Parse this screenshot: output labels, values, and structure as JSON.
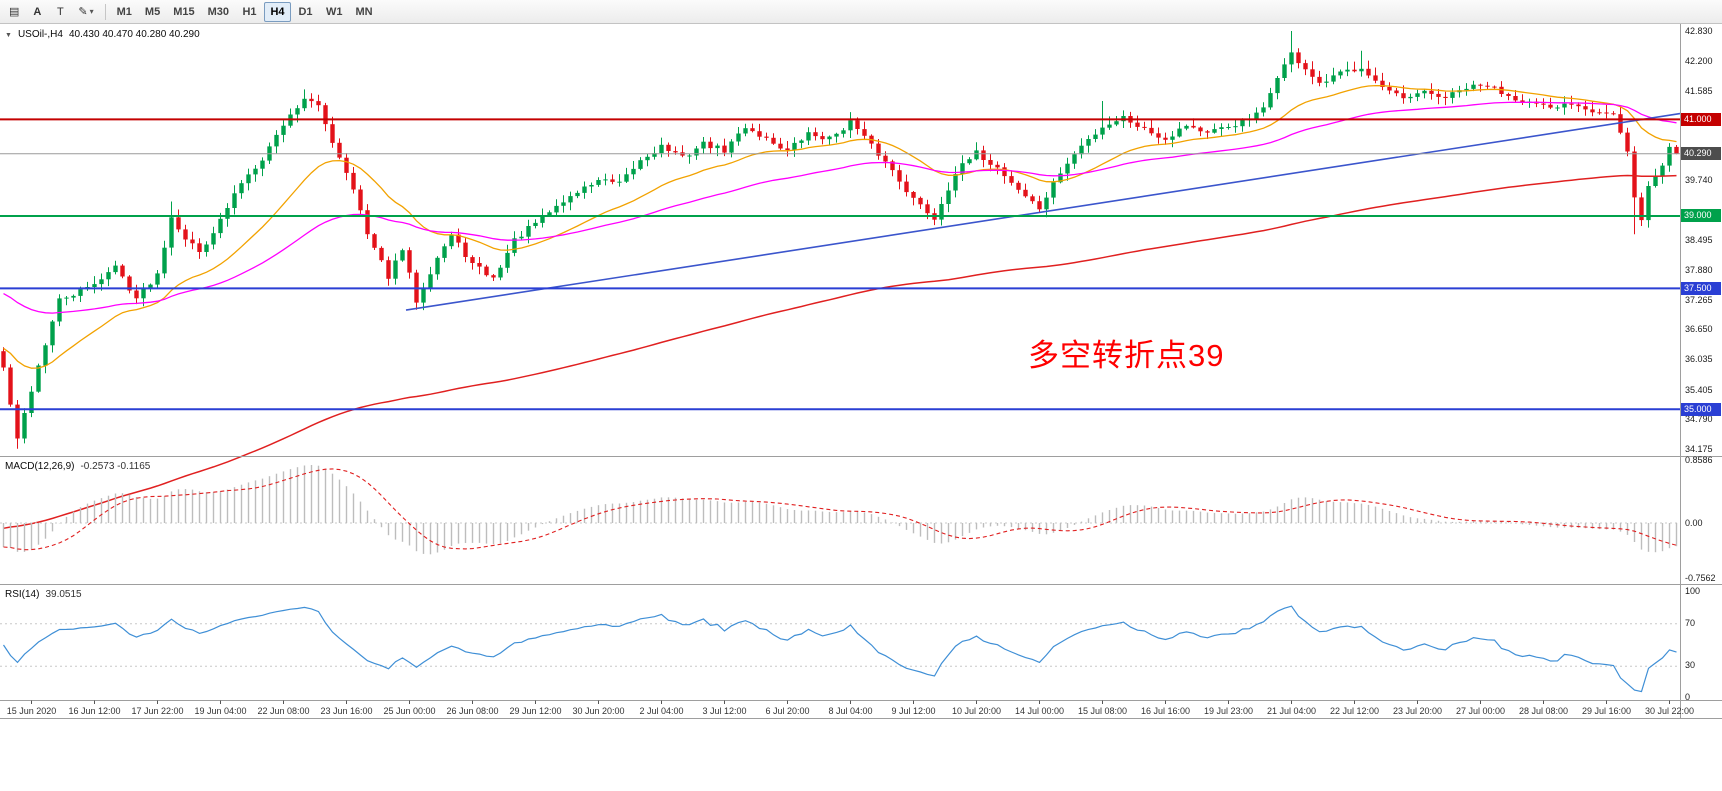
{
  "toolbar": {
    "tool_buttons": [
      {
        "id": "chart-properties",
        "glyph": "▤"
      },
      {
        "id": "arrow-tool",
        "glyph": "A"
      },
      {
        "id": "text-tool",
        "glyph": "T"
      },
      {
        "id": "palette",
        "glyph": "✎",
        "caret": "▾"
      }
    ],
    "timeframes": [
      "M1",
      "M5",
      "M15",
      "M30",
      "H1",
      "H4",
      "D1",
      "W1",
      "MN"
    ],
    "active_timeframe": "H4"
  },
  "price_panel": {
    "collapse_icon": "▼",
    "symbol_title": "USOil-,H4",
    "ohlc": "40.430 40.470 40.280 40.290",
    "annotation": {
      "text": "多空转折点39",
      "color": "#ff0000"
    },
    "scale_ticks": [
      {
        "label": "42.830",
        "price": 42.83
      },
      {
        "label": "42.200",
        "price": 42.2
      },
      {
        "label": "41.585",
        "price": 41.585
      },
      {
        "label": "39.740",
        "price": 39.74
      },
      {
        "label": "38.495",
        "price": 38.495
      },
      {
        "label": "37.880",
        "price": 37.88
      },
      {
        "label": "37.265",
        "price": 37.265
      },
      {
        "label": "36.650",
        "price": 36.65
      },
      {
        "label": "36.035",
        "price": 36.035
      },
      {
        "label": "35.405",
        "price": 35.405
      },
      {
        "label": "34.790",
        "price": 34.79
      },
      {
        "label": "34.175",
        "price": 34.175
      }
    ],
    "scale_badges": [
      {
        "label": "41.000",
        "price": 41.0,
        "bg": "#c40000"
      },
      {
        "label": "40.290",
        "price": 40.29,
        "bg": "#4d4d4d"
      },
      {
        "label": "39.000",
        "price": 39.0,
        "bg": "#00a14b"
      },
      {
        "label": "37.500",
        "price": 37.5,
        "bg": "#2a3fd4"
      },
      {
        "label": "35.000",
        "price": 35.0,
        "bg": "#2a3fd4"
      }
    ],
    "hlines": [
      {
        "price": 41.0,
        "color": "#c40000",
        "width": 2
      },
      {
        "price": 40.29,
        "color": "#9a9a9a",
        "width": 1
      },
      {
        "price": 39.0,
        "color": "#00a14b",
        "width": 2
      },
      {
        "price": 37.5,
        "color": "#2a3fd4",
        "width": 2
      },
      {
        "price": 35.0,
        "color": "#2a3fd4",
        "width": 2
      }
    ],
    "trendlines": [
      {
        "bar1": 58,
        "price1": 37.05,
        "bar2": 240,
        "price2": 41.12,
        "color": "#3b55cc",
        "width": 1.6
      }
    ]
  },
  "chart_data": {
    "type": "candlestick",
    "symbol": "USOil",
    "timeframe": "H4",
    "bars": 240,
    "y_range": [
      34.03,
      42.975
    ],
    "up_color": "#00a14b",
    "down_color": "#e3121a",
    "noise_seed": 42,
    "first_open": 36.2,
    "close_anchors": [
      [
        0,
        35.85
      ],
      [
        1,
        35.1
      ],
      [
        2,
        34.35
      ],
      [
        3,
        34.9
      ],
      [
        5,
        35.9
      ],
      [
        8,
        37.25
      ],
      [
        12,
        37.5
      ],
      [
        16,
        37.95
      ],
      [
        19,
        37.3
      ],
      [
        22,
        37.8
      ],
      [
        24,
        39.0
      ],
      [
        26,
        38.55
      ],
      [
        28,
        38.25
      ],
      [
        31,
        38.9
      ],
      [
        34,
        39.7
      ],
      [
        37,
        40.2
      ],
      [
        40,
        40.9
      ],
      [
        43,
        41.45
      ],
      [
        45,
        41.25
      ],
      [
        47,
        40.55
      ],
      [
        50,
        39.6
      ],
      [
        52,
        38.6
      ],
      [
        55,
        37.75
      ],
      [
        57,
        38.3
      ],
      [
        59,
        37.25
      ],
      [
        62,
        38.15
      ],
      [
        64,
        38.6
      ],
      [
        67,
        38.0
      ],
      [
        70,
        37.7
      ],
      [
        73,
        38.5
      ],
      [
        76,
        38.85
      ],
      [
        79,
        39.2
      ],
      [
        82,
        39.5
      ],
      [
        85,
        39.75
      ],
      [
        88,
        39.65
      ],
      [
        91,
        40.15
      ],
      [
        94,
        40.45
      ],
      [
        97,
        40.2
      ],
      [
        100,
        40.5
      ],
      [
        103,
        40.35
      ],
      [
        106,
        40.85
      ],
      [
        109,
        40.6
      ],
      [
        112,
        40.35
      ],
      [
        115,
        40.7
      ],
      [
        118,
        40.6
      ],
      [
        121,
        40.95
      ],
      [
        124,
        40.45
      ],
      [
        127,
        39.95
      ],
      [
        130,
        39.35
      ],
      [
        133,
        38.95
      ],
      [
        136,
        39.9
      ],
      [
        139,
        40.3
      ],
      [
        142,
        40.0
      ],
      [
        145,
        39.55
      ],
      [
        148,
        39.15
      ],
      [
        151,
        39.9
      ],
      [
        154,
        40.45
      ],
      [
        157,
        40.85
      ],
      [
        160,
        41.05
      ],
      [
        163,
        40.8
      ],
      [
        166,
        40.6
      ],
      [
        169,
        40.9
      ],
      [
        172,
        40.7
      ],
      [
        175,
        40.85
      ],
      [
        178,
        41.0
      ],
      [
        180,
        41.2
      ],
      [
        182,
        41.9
      ],
      [
        184,
        42.35
      ],
      [
        186,
        42.05
      ],
      [
        188,
        41.7
      ],
      [
        191,
        41.95
      ],
      [
        194,
        42.1
      ],
      [
        197,
        41.65
      ],
      [
        200,
        41.4
      ],
      [
        203,
        41.55
      ],
      [
        206,
        41.45
      ],
      [
        209,
        41.65
      ],
      [
        212,
        41.7
      ],
      [
        215,
        41.5
      ],
      [
        218,
        41.35
      ],
      [
        221,
        41.2
      ],
      [
        224,
        41.35
      ],
      [
        227,
        41.2
      ],
      [
        230,
        41.1
      ],
      [
        232,
        40.3
      ],
      [
        233,
        39.35
      ],
      [
        234,
        38.95
      ],
      [
        235,
        39.6
      ],
      [
        237,
        40.05
      ],
      [
        238,
        40.43
      ],
      [
        239,
        40.29
      ]
    ],
    "wick_overrides": {
      "2": {
        "low": 34.18
      },
      "24": {
        "high": 39.3
      },
      "43": {
        "high": 41.62
      },
      "121": {
        "high": 41.15
      },
      "157": {
        "high": 41.38
      },
      "184": {
        "high": 42.83
      },
      "194": {
        "high": 42.42
      },
      "233": {
        "low": 38.62
      }
    },
    "last_bar": {
      "open": 40.43,
      "high": 40.47,
      "low": 40.28,
      "close": 40.29
    },
    "moving_averages": [
      {
        "name": "fast",
        "period": 21,
        "seed": 36.3,
        "color": "#f2a200",
        "width": 1.3
      },
      {
        "name": "medium",
        "period": 55,
        "seed": 37.45,
        "color": "#ff00ff",
        "width": 1.3
      },
      {
        "name": "slow",
        "period": 200,
        "seed": 32.5,
        "color": "#e02020",
        "width": 1.5
      }
    ],
    "time_labels": [
      "15 Jun 2020",
      "16 Jun 12:00",
      "17 Jun 22:00",
      "19 Jun 04:00",
      "22 Jun 08:00",
      "23 Jun 16:00",
      "25 Jun 00:00",
      "26 Jun 08:00",
      "29 Jun 12:00",
      "30 Jun 20:00",
      "2 Jul 04:00",
      "3 Jul 12:00",
      "6 Jul 20:00",
      "8 Jul 04:00",
      "9 Jul 12:00",
      "10 Jul 20:00",
      "14 Jul 00:00",
      "15 Jul 08:00",
      "16 Jul 16:00",
      "19 Jul 23:00",
      "21 Jul 04:00",
      "22 Jul 12:00",
      "23 Jul 20:00",
      "27 Jul 00:00",
      "28 Jul 08:00",
      "29 Jul 16:00",
      "30 Jul 22:00"
    ],
    "label_every_bars": 9,
    "label_offset_bars": 4
  },
  "macd_panel": {
    "title": "MACD(12,26,9)",
    "values": "-0.2573 -0.1165",
    "fast": 12,
    "slow": 26,
    "signal": 9,
    "hist_color": "#bdbdbd",
    "signal_color": "#e02020",
    "scale_labels": [
      {
        "label": "0.8586",
        "value": 0.8586
      },
      {
        "label": "0.00",
        "value": 0
      },
      {
        "label": "-0.7562",
        "value": -0.7562
      }
    ]
  },
  "rsi_panel": {
    "title": "RSI(14)",
    "value": "39.0515",
    "period": 14,
    "line_color": "#3f8fd6",
    "levels": [
      70,
      30
    ],
    "scale_labels": [
      {
        "label": "100",
        "value": 100
      },
      {
        "label": "70",
        "value": 70
      },
      {
        "label": "30",
        "value": 30
      },
      {
        "label": "0",
        "value": 0
      }
    ]
  }
}
